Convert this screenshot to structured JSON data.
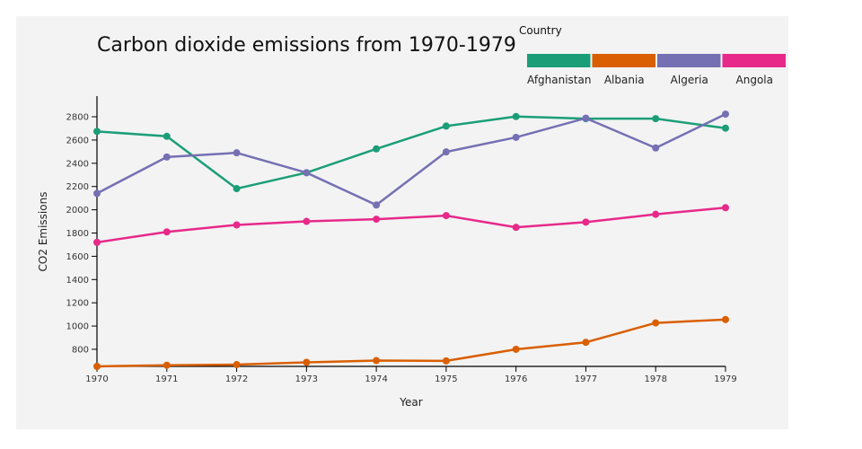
{
  "chart_data": {
    "type": "line",
    "title": "Carbon dioxide emissions from 1970-1979",
    "xlabel": "Year",
    "ylabel": "CO2 Emissions",
    "x": [
      1970,
      1971,
      1972,
      1973,
      1974,
      1975,
      1976,
      1977,
      1978,
      1979
    ],
    "x_tick_labels": [
      "1970",
      "1971",
      "1972",
      "1973",
      "1974",
      "1975",
      "1976",
      "1977",
      "1978",
      "1979"
    ],
    "y_ticks": [
      800,
      1000,
      1200,
      1400,
      1600,
      1800,
      2000,
      2200,
      2400,
      2600,
      2800
    ],
    "y_tick_labels": [
      "800",
      "1000",
      "1200",
      "1400",
      "1600",
      "1800",
      "2000",
      "2200",
      "2400",
      "2600",
      "2800"
    ],
    "ylim": [
      653,
      2978
    ],
    "xlim": [
      1970,
      1979
    ],
    "grid": false,
    "legend": {
      "title": "Country",
      "placement": "top-right"
    },
    "series": [
      {
        "name": "Afghanistan",
        "color": "#1b9e77",
        "values": [
          2674,
          2632,
          2182,
          2319,
          2524,
          2720,
          2802,
          2784,
          2784,
          2702
        ]
      },
      {
        "name": "Albania",
        "color": "#d95f02",
        "values": [
          653,
          663,
          668,
          688,
          703,
          700,
          800,
          860,
          1027,
          1056
        ]
      },
      {
        "name": "Algeria",
        "color": "#7570b3",
        "values": [
          2141,
          2454,
          2490,
          2319,
          2041,
          2498,
          2623,
          2788,
          2532,
          2823
        ]
      },
      {
        "name": "Angola",
        "color": "#e7298a",
        "values": [
          1720,
          1810,
          1870,
          1900,
          1919,
          1950,
          1849,
          1894,
          1961,
          2018
        ]
      }
    ]
  }
}
